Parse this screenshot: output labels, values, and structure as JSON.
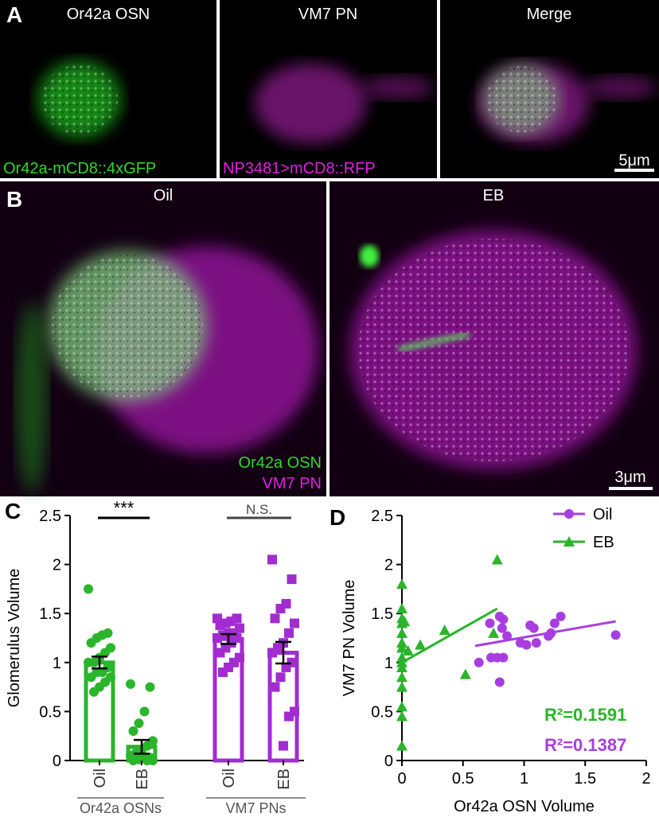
{
  "panels": {
    "a": "A",
    "b": "B",
    "c": "C",
    "d": "D"
  },
  "panel_a": {
    "titles": [
      "Or42a OSN",
      "VM7 PN",
      "Merge"
    ],
    "captions": [
      "Or42a-mCD8::4xGFP",
      "NP3481>mCD8::RFP"
    ],
    "scale": "5μm"
  },
  "panel_b": {
    "titles": [
      "Oil",
      "EB"
    ],
    "legend": [
      "Or42a OSN",
      "VM7 PN"
    ],
    "scale": "3μm"
  },
  "chart_data": [
    {
      "type": "bar",
      "ylabel": "Glomerulus Volume",
      "categories": [
        "Oil",
        "EB",
        "Oil",
        "EB"
      ],
      "groups": [
        "Or42a OSNs",
        "VM7 PNs"
      ],
      "colors": [
        "#2ab52a",
        "#2ab52a",
        "#a22cd0",
        "#a22cd0"
      ],
      "markers": [
        "circle",
        "circle",
        "square",
        "square"
      ],
      "values": [
        1.0,
        0.14,
        1.24,
        1.1
      ],
      "errors": [
        0.06,
        0.07,
        0.05,
        0.11
      ],
      "points": [
        [
          1.75,
          1.3,
          1.28,
          1.25,
          1.2,
          1.15,
          1.1,
          1.05,
          1.0,
          1.0,
          0.95,
          0.9,
          0.9,
          0.85,
          0.85,
          0.8,
          0.75,
          0.7
        ],
        [
          0.78,
          0.75,
          0.5,
          0.38,
          0.3,
          0.2,
          0.15,
          0.1,
          0.08,
          0.05,
          0.03,
          0.02,
          0.01,
          0.0,
          0.0,
          0.0
        ],
        [
          1.45,
          1.45,
          1.42,
          1.4,
          1.38,
          1.35,
          1.3,
          1.3,
          1.28,
          1.25,
          1.25,
          1.2,
          1.15,
          1.1,
          1.05,
          1.0,
          0.95,
          0.9
        ],
        [
          2.05,
          1.85,
          1.6,
          1.55,
          1.45,
          1.4,
          1.3,
          1.2,
          1.15,
          1.1,
          1.0,
          0.95,
          0.85,
          0.75,
          0.5,
          0.45,
          0.15
        ]
      ],
      "annotations": [
        "***",
        "N.S."
      ],
      "ylim": [
        0,
        2.5
      ],
      "yticks": [
        0,
        0.5,
        1,
        1.5,
        2,
        2.5
      ]
    },
    {
      "type": "scatter",
      "xlabel": "Or42a OSN Volume",
      "ylabel": "VM7 PN Volume",
      "series": [
        {
          "name": "Oil",
          "color": "#a83ee0",
          "marker": "circle",
          "x": [
            0.63,
            0.73,
            0.78,
            0.83,
            0.72,
            0.8,
            0.83,
            0.82,
            0.8,
            0.86,
            0.97,
            1.02,
            1.05,
            1.08,
            1.1,
            1.2,
            1.25,
            1.3,
            1.22,
            1.75
          ],
          "y": [
            1.0,
            1.05,
            1.05,
            1.05,
            1.4,
            1.47,
            1.44,
            1.35,
            0.8,
            1.27,
            1.2,
            1.18,
            1.38,
            1.35,
            1.2,
            1.27,
            1.4,
            1.47,
            1.3,
            1.28
          ],
          "fit": {
            "x": [
              0.6,
              1.75
            ],
            "y": [
              1.17,
              1.42
            ]
          }
        },
        {
          "name": "EB",
          "color": "#2ab52a",
          "marker": "triangle",
          "x": [
            0,
            0,
            0,
            0,
            0,
            0,
            0,
            0,
            0,
            0,
            0,
            0,
            0,
            0,
            0,
            0.02,
            0.05,
            0.15,
            0.35,
            0.52,
            0.75,
            0.78
          ],
          "y": [
            1.8,
            1.55,
            1.45,
            1.4,
            1.3,
            1.2,
            1.15,
            1.05,
            1.0,
            0.95,
            0.85,
            0.75,
            0.55,
            0.45,
            0.15,
            1.42,
            1.12,
            1.18,
            1.33,
            0.88,
            1.3,
            2.05
          ],
          "fit": {
            "x": [
              0,
              0.78
            ],
            "y": [
              1.0,
              1.55
            ]
          }
        }
      ],
      "annotations": [
        {
          "text": "R²=0.1591",
          "color": "#2ab52a"
        },
        {
          "text": "R²=0.1387",
          "color": "#a83ee0"
        }
      ],
      "legend": "top-right",
      "xlim": [
        0,
        2
      ],
      "xticks": [
        0,
        0.5,
        1,
        1.5,
        2
      ],
      "ylim": [
        0,
        2.5
      ],
      "yticks": [
        0,
        0.5,
        1,
        1.5,
        2,
        2.5
      ]
    }
  ]
}
